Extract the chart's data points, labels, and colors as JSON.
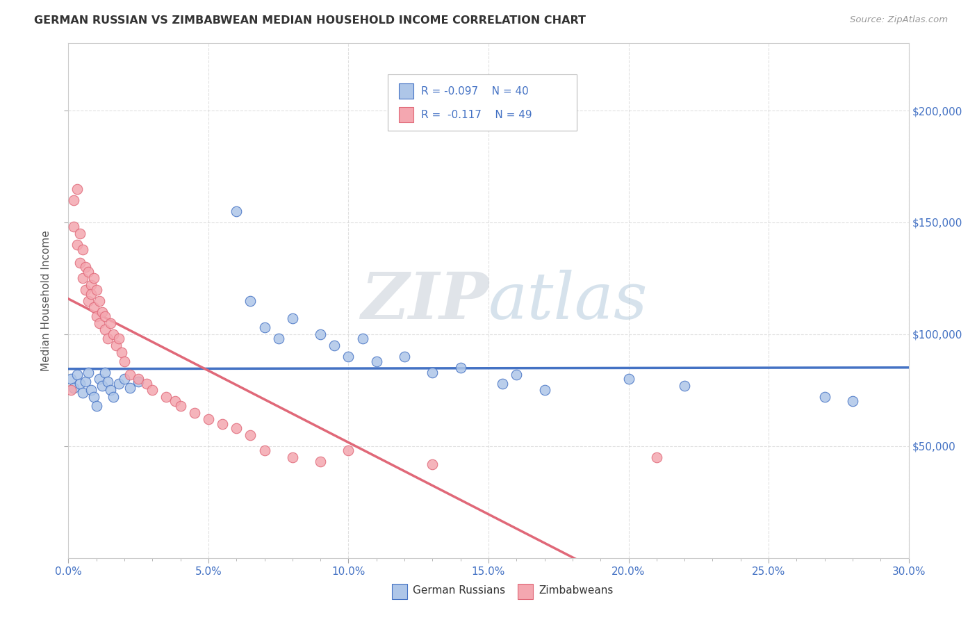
{
  "title": "GERMAN RUSSIAN VS ZIMBABWEAN MEDIAN HOUSEHOLD INCOME CORRELATION CHART",
  "source": "Source: ZipAtlas.com",
  "ylabel": "Median Household Income",
  "xlim": [
    0.0,
    0.3
  ],
  "ylim": [
    0,
    230000
  ],
  "xtick_labels": [
    "0.0%",
    "",
    "",
    "",
    "",
    "5.0%",
    "",
    "",
    "",
    "",
    "10.0%",
    "",
    "",
    "",
    "",
    "15.0%",
    "",
    "",
    "",
    "",
    "20.0%",
    "",
    "",
    "",
    "",
    "25.0%",
    "",
    "",
    "",
    "",
    "30.0%"
  ],
  "xtick_vals": [
    0.0,
    0.01,
    0.02,
    0.03,
    0.04,
    0.05,
    0.06,
    0.07,
    0.08,
    0.09,
    0.1,
    0.11,
    0.12,
    0.13,
    0.14,
    0.15,
    0.16,
    0.17,
    0.18,
    0.19,
    0.2,
    0.21,
    0.22,
    0.23,
    0.24,
    0.25,
    0.26,
    0.27,
    0.28,
    0.29,
    0.3
  ],
  "ytick_labels_left": [
    "",
    "",
    "",
    ""
  ],
  "ytick_labels_right": [
    "$50,000",
    "$100,000",
    "$150,000",
    "$200,000"
  ],
  "ytick_vals": [
    50000,
    100000,
    150000,
    200000
  ],
  "series1_label": "German Russians",
  "series1_color": "#aec6e8",
  "series1_edge": "#4472c4",
  "series2_label": "Zimbabweans",
  "series2_color": "#f4a7b0",
  "series2_edge": "#e06878",
  "line1_color": "#4472c4",
  "line2_color": "#e06878",
  "background_color": "#ffffff",
  "grid_color": "#cccccc",
  "axis_label_color": "#4472c4",
  "watermark_zip": "ZIP",
  "watermark_atlas": "atlas",
  "watermark_zip_color": "#c8d0d8",
  "watermark_atlas_color": "#aabbd0",
  "german_russian_x": [
    0.001,
    0.002,
    0.003,
    0.004,
    0.005,
    0.006,
    0.007,
    0.008,
    0.009,
    0.01,
    0.011,
    0.012,
    0.013,
    0.014,
    0.015,
    0.016,
    0.018,
    0.02,
    0.022,
    0.025,
    0.06,
    0.065,
    0.07,
    0.075,
    0.08,
    0.09,
    0.095,
    0.1,
    0.105,
    0.11,
    0.12,
    0.13,
    0.14,
    0.155,
    0.16,
    0.17,
    0.2,
    0.22,
    0.27,
    0.28
  ],
  "german_russian_y": [
    80000,
    76000,
    82000,
    78000,
    74000,
    79000,
    83000,
    75000,
    72000,
    68000,
    80000,
    77000,
    83000,
    79000,
    75000,
    72000,
    78000,
    80000,
    76000,
    79000,
    155000,
    115000,
    103000,
    98000,
    107000,
    100000,
    95000,
    90000,
    98000,
    88000,
    90000,
    83000,
    85000,
    78000,
    82000,
    75000,
    80000,
    77000,
    72000,
    70000
  ],
  "zimbabwean_x": [
    0.001,
    0.002,
    0.002,
    0.003,
    0.003,
    0.004,
    0.004,
    0.005,
    0.005,
    0.006,
    0.006,
    0.007,
    0.007,
    0.008,
    0.008,
    0.009,
    0.009,
    0.01,
    0.01,
    0.011,
    0.011,
    0.012,
    0.013,
    0.013,
    0.014,
    0.015,
    0.016,
    0.017,
    0.018,
    0.019,
    0.02,
    0.022,
    0.025,
    0.028,
    0.03,
    0.035,
    0.038,
    0.04,
    0.045,
    0.05,
    0.055,
    0.06,
    0.065,
    0.07,
    0.08,
    0.09,
    0.1,
    0.13,
    0.21
  ],
  "zimbabwean_y": [
    75000,
    160000,
    148000,
    165000,
    140000,
    145000,
    132000,
    138000,
    125000,
    130000,
    120000,
    128000,
    115000,
    122000,
    118000,
    125000,
    112000,
    120000,
    108000,
    115000,
    105000,
    110000,
    108000,
    102000,
    98000,
    105000,
    100000,
    95000,
    98000,
    92000,
    88000,
    82000,
    80000,
    78000,
    75000,
    72000,
    70000,
    68000,
    65000,
    62000,
    60000,
    58000,
    55000,
    48000,
    45000,
    43000,
    48000,
    42000,
    45000
  ]
}
